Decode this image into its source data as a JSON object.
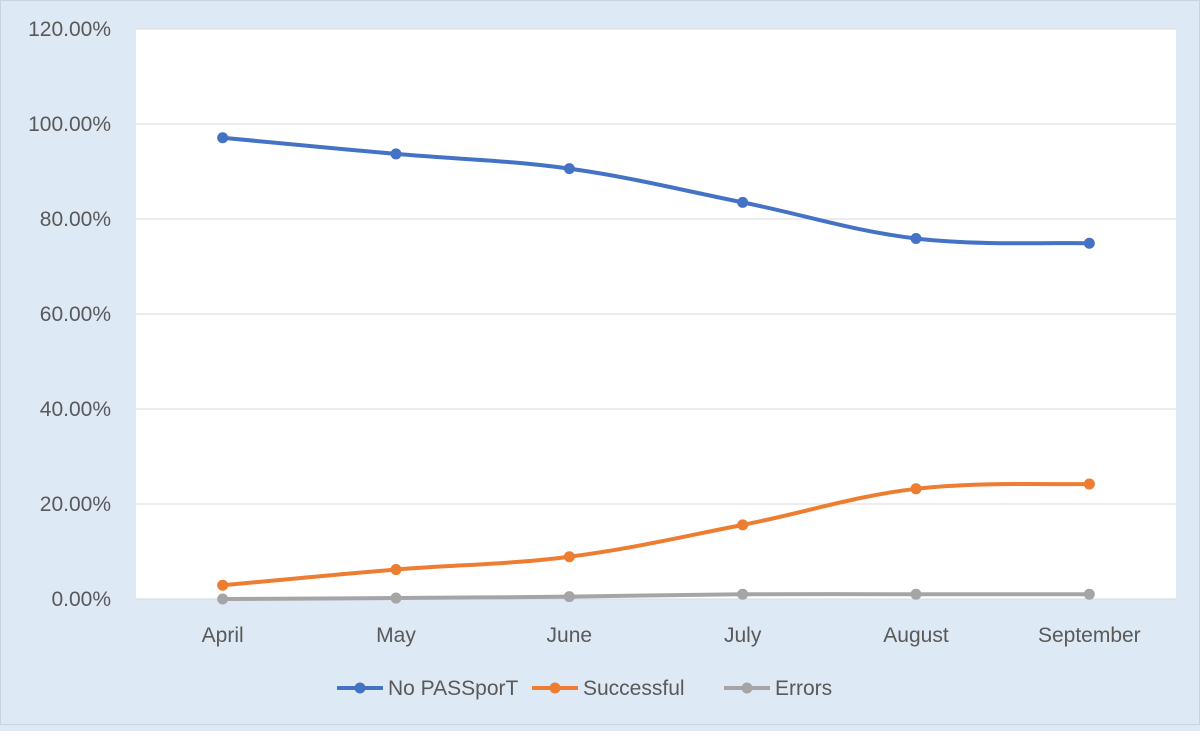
{
  "chart_data": {
    "type": "line",
    "title": "",
    "xlabel": "",
    "ylabel": "",
    "categories": [
      "April",
      "May",
      "June",
      "July",
      "August",
      "September"
    ],
    "y_tick_labels": [
      "0.00%",
      "20.00%",
      "40.00%",
      "60.00%",
      "80.00%",
      "100.00%",
      "120.00%"
    ],
    "y_ticks": [
      0,
      20,
      40,
      60,
      80,
      100,
      120
    ],
    "ylim": [
      0,
      120
    ],
    "grid": "horizontal",
    "legend_position": "bottom",
    "series": [
      {
        "name": "No PASSporT",
        "color": "#4472c4",
        "values": [
          97.1,
          93.7,
          90.6,
          83.5,
          75.9,
          74.9
        ]
      },
      {
        "name": "Successful",
        "color": "#ed7d31",
        "values": [
          2.9,
          6.2,
          8.9,
          15.6,
          23.2,
          24.2
        ]
      },
      {
        "name": "Errors",
        "color": "#a5a5a5",
        "values": [
          0.0,
          0.2,
          0.5,
          1.0,
          1.0,
          1.0
        ]
      }
    ],
    "colors": {
      "background": "#dde9f5",
      "plot_area": "#ffffff",
      "gridline": "#d9d9d9",
      "text": "#595959"
    }
  }
}
